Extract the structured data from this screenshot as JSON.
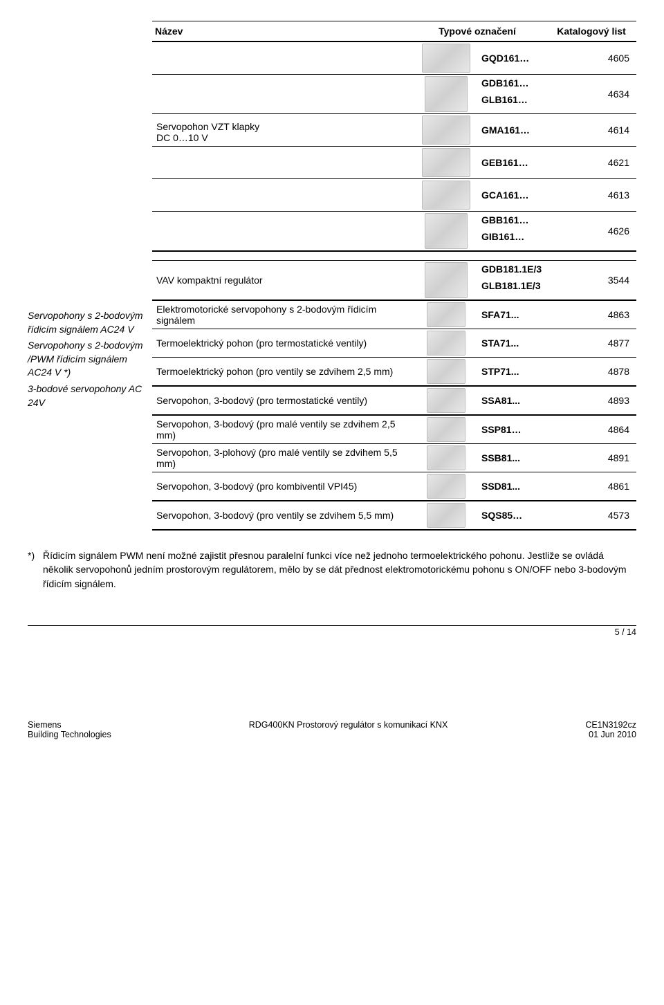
{
  "header": {
    "name": "Název",
    "type": "Typové označení",
    "catalog": "Katalogový list"
  },
  "rows_top": [
    {
      "name": "",
      "type": "GQD161…",
      "cat": "4605"
    },
    {
      "name": "",
      "types": [
        "GDB161…",
        "GLB161…"
      ],
      "cat": "4634"
    },
    {
      "name": "Servopohon VZT klapky\nDC 0…10 V",
      "type": "GMA161…",
      "cat": "4614",
      "merge_name": true
    },
    {
      "name": "",
      "type": "GEB161…",
      "cat": "4621"
    },
    {
      "name": "",
      "type": "GCA161…",
      "cat": "4613"
    },
    {
      "name": "",
      "types": [
        "GBB161…",
        "GIB161…"
      ],
      "cat": "4626"
    }
  ],
  "vav": {
    "name": "VAV kompaktní regulátor",
    "types": [
      "GDB181.1E/3",
      "GLB181.1E/3"
    ],
    "cat": "3544"
  },
  "left_notes": {
    "l1": "Servopohony s 2-bodovým řídicím signálem AC24 V",
    "l2": "Servopohony s 2-bodovým /PWM řídicím signálem AC24 V *)",
    "l3": "3-bodové servopohony AC 24V"
  },
  "rows_bottom": [
    {
      "name": "Elektromotorické servopohony s 2-bodovým řídicím signálem",
      "type": "SFA71...",
      "cat": "4863"
    },
    {
      "name": "Termoelektrický pohon (pro termostatické ventily)",
      "type": "STA71...",
      "cat": "4877"
    },
    {
      "name": "Termoelektrický pohon (pro ventily se zdvihem 2,5 mm)",
      "type": "STP71...",
      "cat": "4878"
    },
    {
      "name": "Servopohon, 3-bodový (pro termostatické ventily)",
      "type": "SSA81...",
      "cat": "4893"
    },
    {
      "name": "Servopohon, 3-bodový (pro malé ventily se zdvihem 2,5 mm)",
      "type": "SSP81…",
      "cat": "4864"
    },
    {
      "name": "Servopohon, 3-plohový (pro malé ventily se zdvihem 5,5 mm)",
      "type": "SSB81...",
      "cat": "4891"
    },
    {
      "name": "Servopohon, 3-bodový (pro kombiventil VPI45)",
      "type": "SSD81...",
      "cat": "4861"
    },
    {
      "name": "Servopohon, 3-bodový (pro ventily se zdvihem 5,5 mm)",
      "type": "SQS85…",
      "cat": "4573"
    }
  ],
  "footnote": "Řídicím signálem PWM není možné zajistit přesnou paralelní funkci více než jednoho termoelektrického pohonu. Jestliže se ovládá několik servopohonů jedním prostorovým regulátorem, mělo by se dát přednost elektromotorickému pohonu s ON/OFF nebo 3-bodovým řídicím signálem.",
  "footnote_marker": "*)",
  "page": "5 / 14",
  "footer": {
    "l1": "Siemens",
    "l2": "Building Technologies",
    "c": "RDG400KN  Prostorový regulátor s komunikací KNX",
    "r1": "CE1N3192cz",
    "r2": "01 Jun 2010"
  }
}
